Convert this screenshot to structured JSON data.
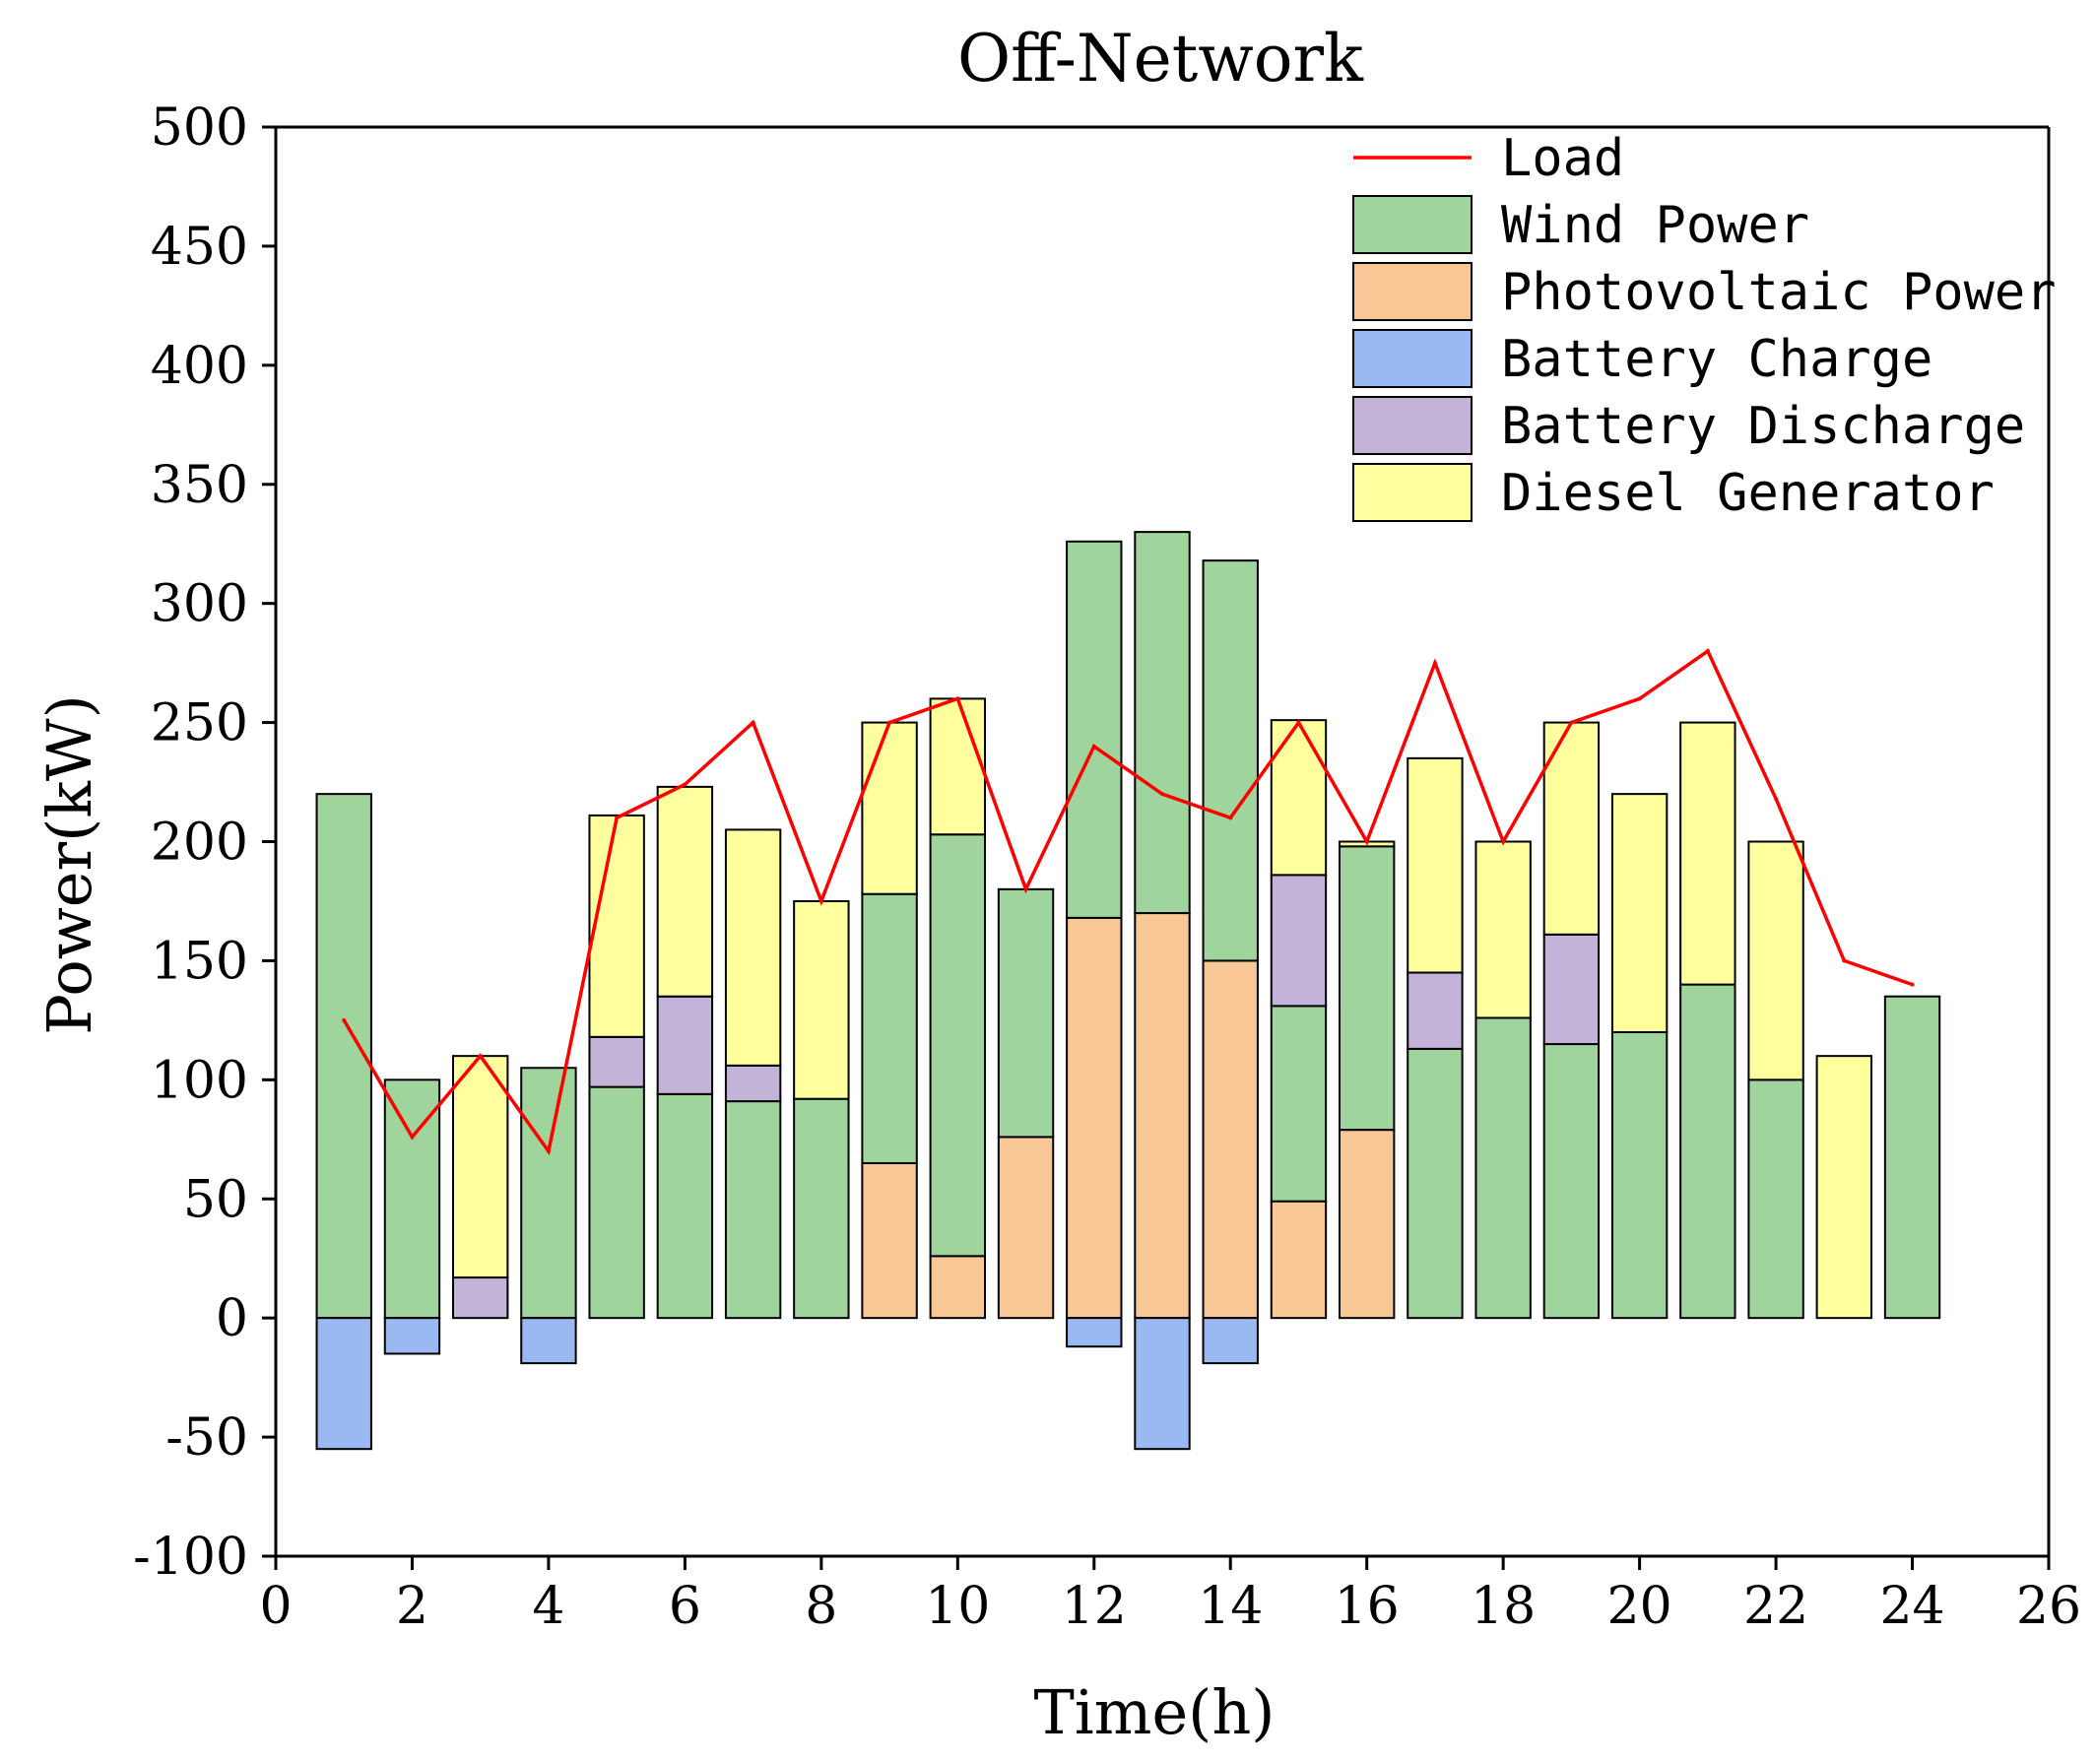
{
  "chart_data": {
    "type": "bar",
    "title": "Off-Network",
    "xlabel": "Time(h)",
    "ylabel": "Power(kW)",
    "xlim": [
      0,
      26
    ],
    "ylim": [
      -100,
      500
    ],
    "xticks": [
      0,
      2,
      4,
      6,
      8,
      10,
      12,
      14,
      16,
      18,
      20,
      22,
      24,
      26
    ],
    "yticks": [
      -100,
      -50,
      0,
      50,
      100,
      150,
      200,
      250,
      300,
      350,
      400,
      450,
      500
    ],
    "x": [
      1,
      2,
      3,
      4,
      5,
      6,
      7,
      8,
      9,
      10,
      11,
      12,
      13,
      14,
      15,
      16,
      17,
      18,
      19,
      20,
      21,
      22,
      23,
      24
    ],
    "stacked": true,
    "series": [
      {
        "name": "Photovoltaic Power",
        "kind": "bar",
        "color": "#f9c696",
        "values": [
          0,
          0,
          0,
          0,
          0,
          0,
          0,
          0,
          65,
          26,
          76,
          168,
          170,
          150,
          49,
          79,
          0,
          0,
          0,
          0,
          0,
          0,
          0,
          0
        ]
      },
      {
        "name": "Wind Power",
        "kind": "bar",
        "color": "#9fd59c",
        "values": [
          220,
          100,
          0,
          105,
          97,
          94,
          91,
          92,
          113,
          177,
          104,
          158,
          160,
          168,
          82,
          119,
          113,
          126,
          115,
          120,
          140,
          100,
          0,
          135
        ]
      },
      {
        "name": "Battery Discharge",
        "kind": "bar",
        "color": "#c3b3d8",
        "values": [
          0,
          0,
          17,
          0,
          21,
          41,
          15,
          0,
          0,
          0,
          0,
          0,
          0,
          0,
          55,
          0,
          32,
          0,
          46,
          0,
          0,
          0,
          0,
          0
        ]
      },
      {
        "name": "Diesel Generator",
        "kind": "bar",
        "color": "#ffff9e",
        "values": [
          0,
          0,
          93,
          0,
          93,
          88,
          99,
          83,
          72,
          57,
          0,
          0,
          0,
          0,
          65,
          2,
          90,
          74,
          89,
          100,
          110,
          100,
          110,
          0
        ]
      },
      {
        "name": "Battery Charge",
        "kind": "bar",
        "color": "#9ab8f2",
        "values": [
          -55,
          -15,
          0,
          -19,
          0,
          0,
          0,
          0,
          0,
          0,
          0,
          -12,
          -55,
          -19,
          0,
          0,
          0,
          0,
          0,
          0,
          0,
          0,
          0,
          0
        ]
      },
      {
        "name": "Load",
        "kind": "line",
        "color": "#ff0000",
        "values": [
          125,
          76,
          110,
          70,
          210,
          224,
          250,
          175,
          250,
          260,
          180,
          240,
          220,
          210,
          250,
          200,
          275,
          200,
          250,
          260,
          280,
          218,
          150,
          140
        ]
      }
    ],
    "legend": {
      "position": "top-right",
      "order": [
        "Load",
        "Wind Power",
        "Photovoltaic Power",
        "Battery Charge",
        "Battery Discharge",
        "Diesel Generator"
      ]
    }
  }
}
